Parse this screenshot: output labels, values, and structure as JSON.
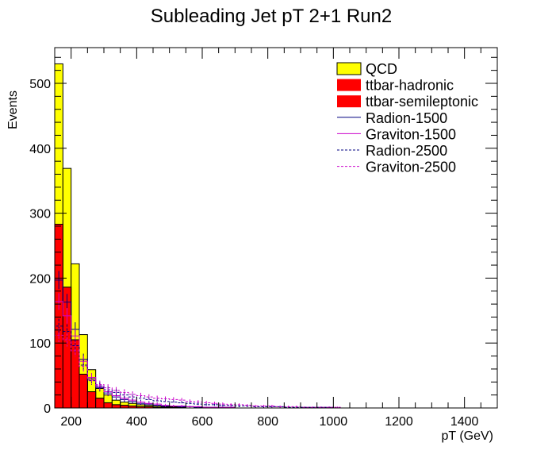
{
  "chart_data": {
    "type": "bar",
    "title": "Subleading Jet pT 2+1 Run2",
    "xlabel": "pT (GeV)",
    "ylabel": "Events",
    "xlim": [
      150,
      1500
    ],
    "ylim": [
      0,
      555
    ],
    "bin_width": 25,
    "x_ticks": [
      200,
      400,
      600,
      800,
      1000,
      1200,
      1400
    ],
    "x_tick_labels": [
      "200",
      "400",
      "600",
      "800",
      "1000",
      "1200",
      "1400"
    ],
    "y_ticks": [
      0,
      100,
      200,
      300,
      400,
      500
    ],
    "y_tick_labels": [
      "0",
      "100",
      "200",
      "300",
      "400",
      "500"
    ],
    "legend_position": "top-right",
    "bin_edges": [
      150,
      175,
      200,
      225,
      250,
      275,
      300,
      325,
      350,
      375,
      400,
      425,
      450,
      475,
      500,
      525,
      550
    ],
    "stacked_series": [
      {
        "name": "ttbar-semileptonic",
        "color": "#ff0000",
        "style": "fill",
        "values": [
          283,
          186,
          105,
          52,
          25,
          15,
          8,
          5,
          4,
          3,
          2,
          2,
          1,
          1,
          1,
          0
        ]
      },
      {
        "name": "ttbar-hadronic",
        "color": "#ff0000",
        "style": "fill",
        "values": [
          0,
          0,
          0,
          0,
          0,
          0,
          0,
          0,
          0,
          0,
          0,
          0,
          0,
          0,
          0,
          0
        ]
      },
      {
        "name": "QCD",
        "color": "#ffff00",
        "style": "fill",
        "values": [
          247,
          183,
          117,
          61,
          34,
          15,
          12,
          7,
          5,
          4,
          3,
          2,
          2,
          1,
          1,
          1
        ]
      }
    ],
    "overlay_series": [
      {
        "name": "Radion-1500",
        "color": "#000080",
        "style": "solid",
        "values": [
          197,
          163,
          121,
          75,
          45,
          31,
          23,
          17,
          13,
          10,
          7,
          6,
          4,
          3,
          3,
          2,
          2,
          1,
          1,
          1,
          1,
          1,
          0,
          0,
          0,
          0,
          0,
          0,
          0,
          0,
          0,
          0,
          0,
          0,
          0,
          0
        ]
      },
      {
        "name": "Graviton-1500",
        "color": "#cc00cc",
        "style": "solid",
        "values": [
          164,
          142,
          111,
          72,
          47,
          33,
          25,
          19,
          15,
          12,
          9,
          7,
          6,
          4,
          3,
          3,
          2,
          2,
          1,
          1,
          1,
          1,
          0,
          0,
          0,
          0,
          0,
          0,
          0,
          0,
          0,
          0,
          0,
          0,
          0,
          0
        ]
      },
      {
        "name": "Radion-2500",
        "color": "#000080",
        "style": "dashed",
        "values": [
          126,
          118,
          96,
          66,
          42,
          34,
          28,
          24,
          20,
          17,
          15,
          13,
          11,
          10,
          9,
          8,
          7,
          6,
          5,
          5,
          4,
          4,
          3,
          3,
          2,
          2,
          2,
          2,
          1,
          1,
          1,
          1,
          1,
          1,
          0,
          0
        ]
      },
      {
        "name": "Graviton-2500",
        "color": "#cc00cc",
        "style": "dashed",
        "values": [
          112,
          105,
          88,
          64,
          43,
          36,
          31,
          27,
          24,
          21,
          19,
          17,
          15,
          14,
          13,
          12,
          10,
          9,
          8,
          7,
          6,
          5,
          5,
          4,
          3,
          3,
          3,
          2,
          2,
          2,
          1,
          1,
          1,
          1,
          1,
          0
        ]
      }
    ],
    "legend": [
      {
        "name": "QCD",
        "marker": "fill",
        "color": "#ffff00"
      },
      {
        "name": "ttbar-hadronic",
        "marker": "fill",
        "color": "#ff0000"
      },
      {
        "name": "ttbar-semileptonic",
        "marker": "fill",
        "color": "#ff0000"
      },
      {
        "name": "Radion-1500",
        "marker": "solid-line",
        "color": "#000080"
      },
      {
        "name": "Graviton-1500",
        "marker": "solid-line",
        "color": "#cc00cc"
      },
      {
        "name": "Radion-2500",
        "marker": "dashed-line",
        "color": "#000080"
      },
      {
        "name": "Graviton-2500",
        "marker": "dashed-line",
        "color": "#cc00cc"
      }
    ]
  }
}
